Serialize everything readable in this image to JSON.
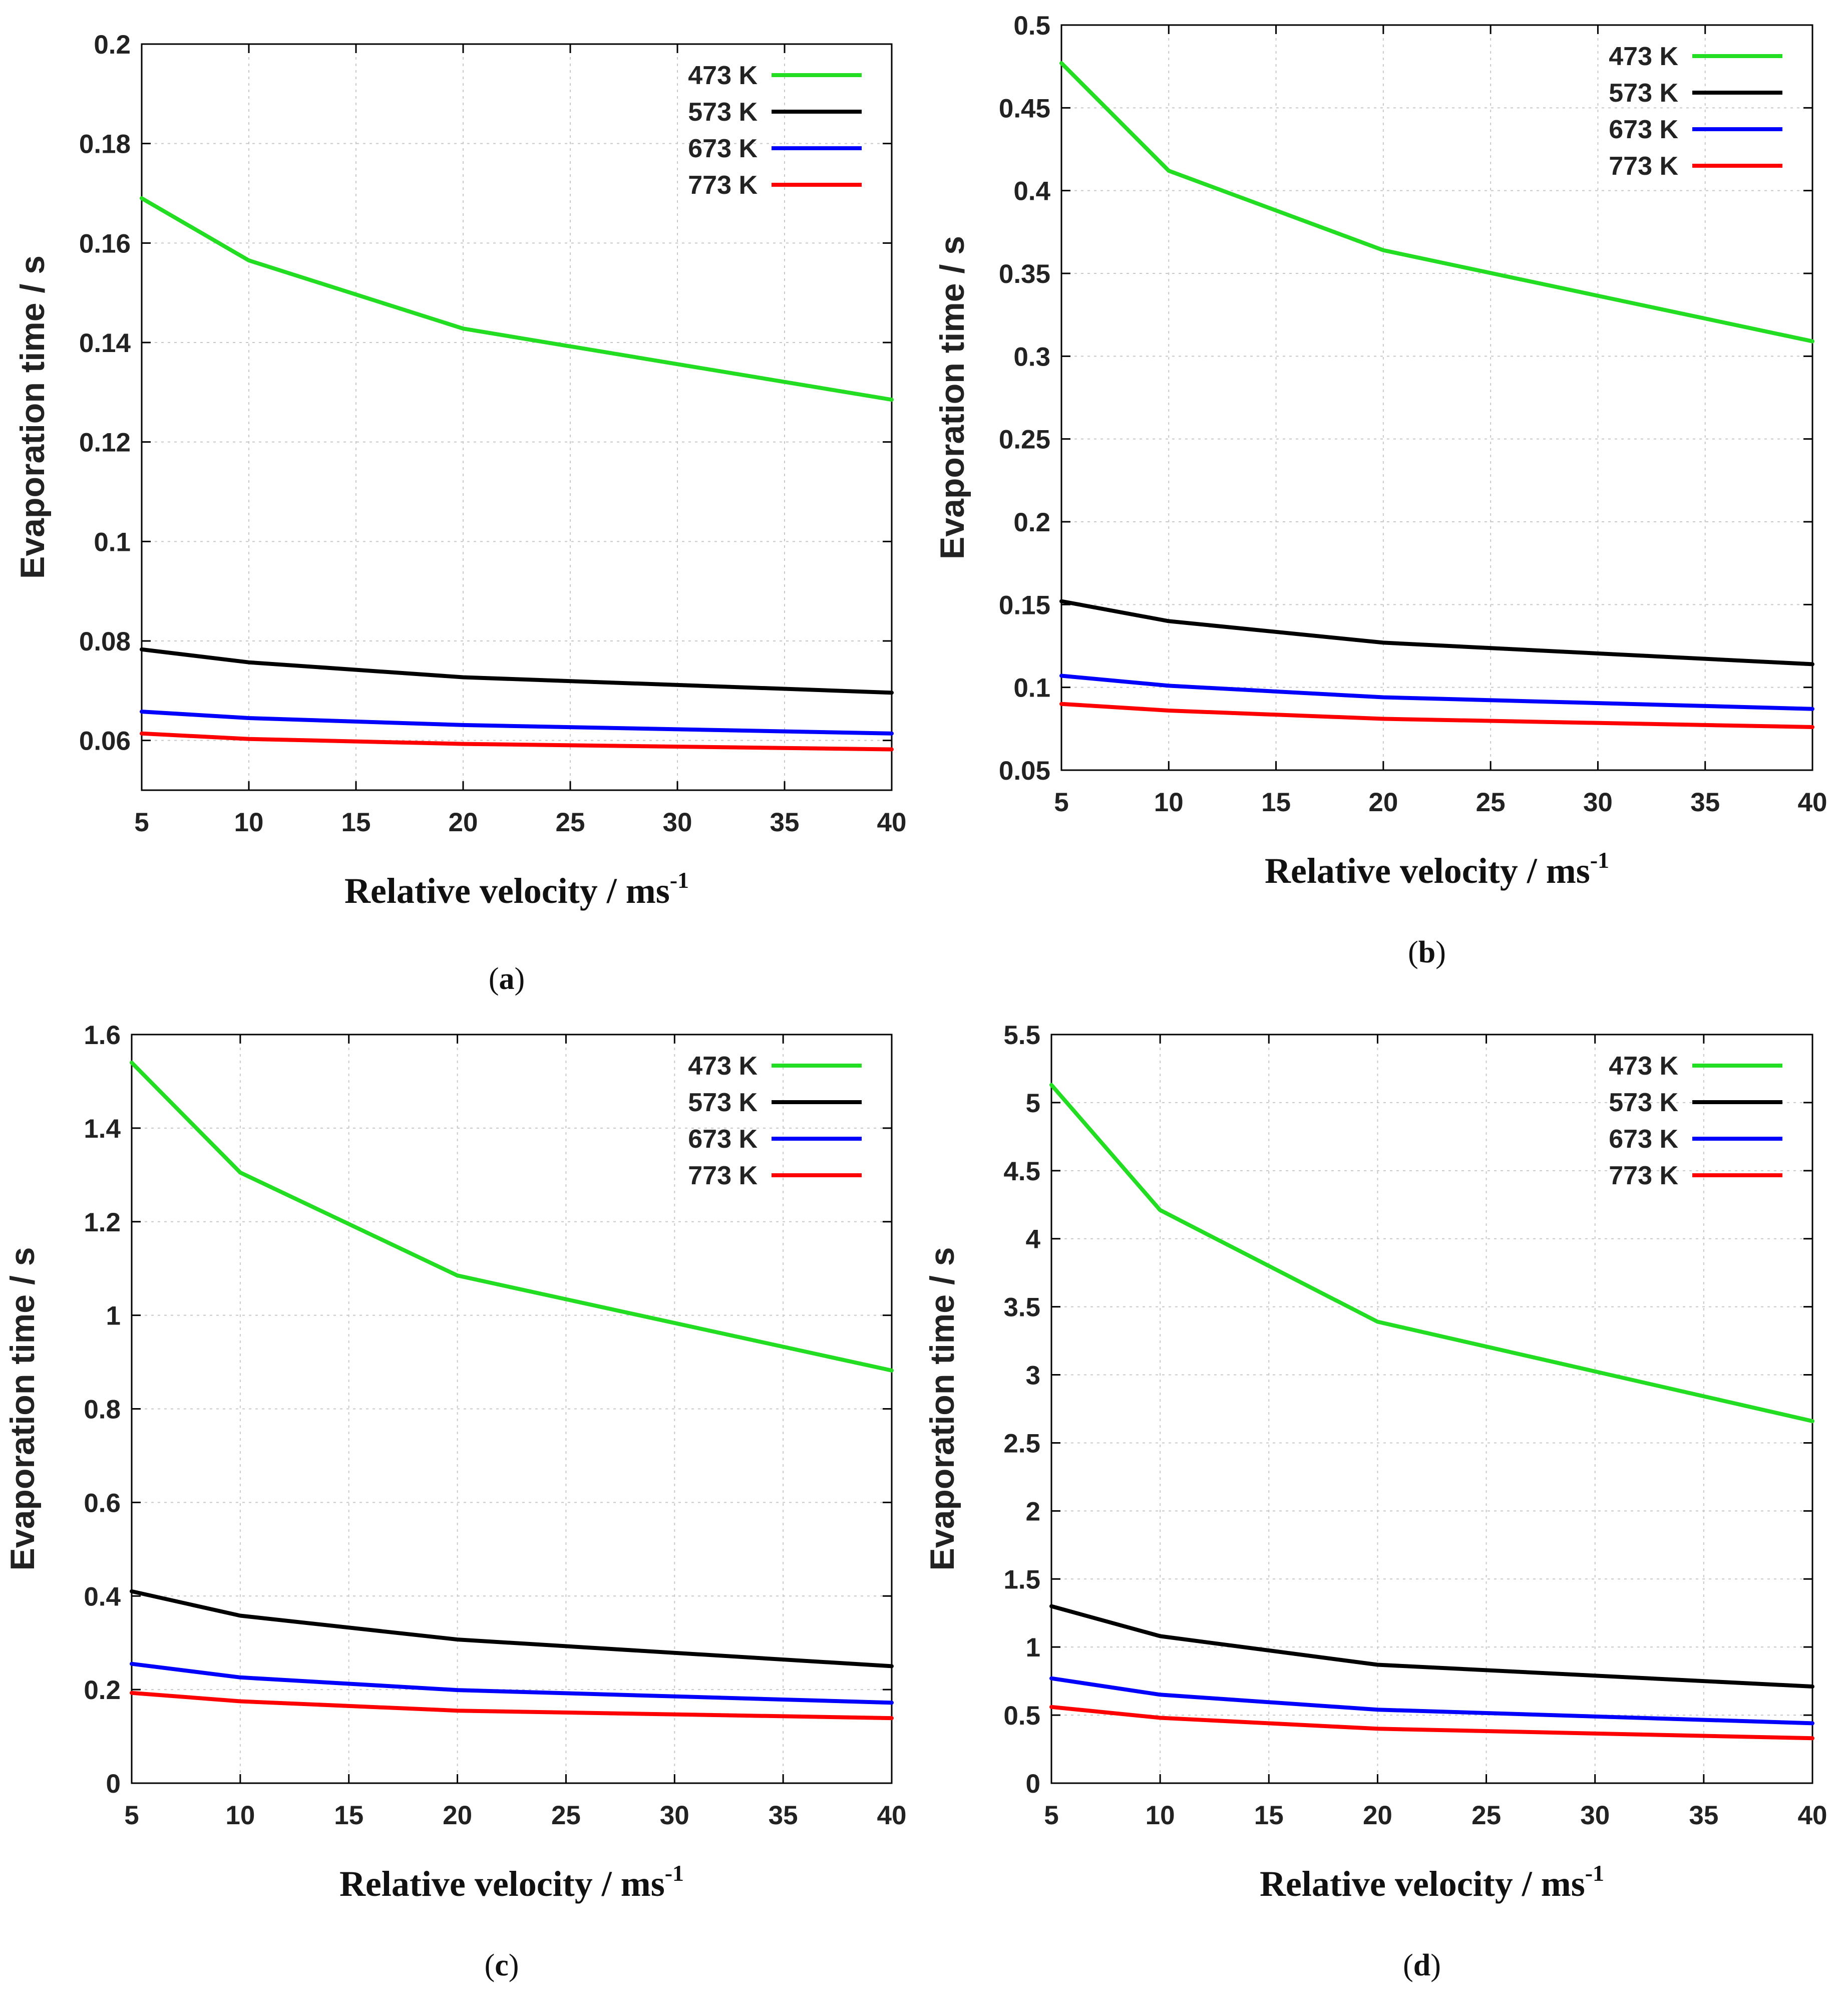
{
  "chart_data": [
    {
      "id": "a",
      "type": "line",
      "caption": "a",
      "xlabel": "Relative velocity / ms",
      "xlabel_sup": "-1",
      "ylabel": "Evaporation time / s",
      "xlim": [
        5,
        40
      ],
      "ylim": [
        0.05,
        0.2
      ],
      "xticks": [
        5,
        10,
        15,
        20,
        25,
        30,
        35,
        40
      ],
      "yticks": [
        0.06,
        0.08,
        0.1,
        0.12,
        0.14,
        0.16,
        0.18,
        0.2
      ],
      "x": [
        5,
        10,
        20,
        40
      ],
      "series": [
        {
          "name": "473 K",
          "color": "#22dd22",
          "values": [
            0.169,
            0.1565,
            0.1428,
            0.1285
          ]
        },
        {
          "name": "573 K",
          "color": "#000000",
          "values": [
            0.0783,
            0.0757,
            0.0727,
            0.0696
          ]
        },
        {
          "name": "673 K",
          "color": "#0000ff",
          "values": [
            0.0658,
            0.0645,
            0.0631,
            0.0614
          ]
        },
        {
          "name": "773 K",
          "color": "#ff0000",
          "values": [
            0.0614,
            0.0603,
            0.0593,
            0.0582
          ]
        }
      ]
    },
    {
      "id": "b",
      "type": "line",
      "caption": "b",
      "xlabel": "Relative velocity / ms",
      "xlabel_sup": "-1",
      "ylabel": "Evaporation time / s",
      "xlim": [
        5,
        40
      ],
      "ylim": [
        0.05,
        0.5
      ],
      "xticks": [
        5,
        10,
        15,
        20,
        25,
        30,
        35,
        40
      ],
      "yticks": [
        0.05,
        0.1,
        0.15,
        0.2,
        0.25,
        0.3,
        0.35,
        0.4,
        0.45,
        0.5
      ],
      "x": [
        5,
        10,
        20,
        40
      ],
      "series": [
        {
          "name": "473 K",
          "color": "#22dd22",
          "values": [
            0.477,
            0.412,
            0.364,
            0.309
          ]
        },
        {
          "name": "573 K",
          "color": "#000000",
          "values": [
            0.152,
            0.14,
            0.127,
            0.114
          ]
        },
        {
          "name": "673 K",
          "color": "#0000ff",
          "values": [
            0.107,
            0.101,
            0.094,
            0.087
          ]
        },
        {
          "name": "773 K",
          "color": "#ff0000",
          "values": [
            0.09,
            0.086,
            0.081,
            0.076
          ]
        }
      ]
    },
    {
      "id": "c",
      "type": "line",
      "caption": "c",
      "xlabel": "Relative velocity / ms",
      "xlabel_sup": "-1",
      "ylabel": "Evaporation time / s",
      "xlim": [
        5,
        40
      ],
      "ylim": [
        0,
        1.6
      ],
      "xticks": [
        5,
        10,
        15,
        20,
        25,
        30,
        35,
        40
      ],
      "yticks": [
        0,
        0.2,
        0.4,
        0.6,
        0.8,
        1,
        1.2,
        1.4,
        1.6
      ],
      "x": [
        5,
        10,
        20,
        40
      ],
      "series": [
        {
          "name": "473 K",
          "color": "#22dd22",
          "values": [
            1.54,
            1.305,
            1.085,
            0.882
          ]
        },
        {
          "name": "573 K",
          "color": "#000000",
          "values": [
            0.41,
            0.358,
            0.307,
            0.25
          ]
        },
        {
          "name": "673 K",
          "color": "#0000ff",
          "values": [
            0.255,
            0.226,
            0.199,
            0.172
          ]
        },
        {
          "name": "773 K",
          "color": "#ff0000",
          "values": [
            0.193,
            0.175,
            0.155,
            0.139
          ]
        }
      ]
    },
    {
      "id": "d",
      "type": "line",
      "caption": "d",
      "xlabel": "Relative velocity / ms",
      "xlabel_sup": "-1",
      "ylabel": "Evaporation time / s",
      "xlim": [
        5,
        40
      ],
      "ylim": [
        0,
        5.5
      ],
      "xticks": [
        5,
        10,
        15,
        20,
        25,
        30,
        35,
        40
      ],
      "yticks": [
        0,
        0.5,
        1,
        1.5,
        2,
        2.5,
        3,
        3.5,
        4,
        4.5,
        5,
        5.5
      ],
      "x": [
        5,
        10,
        20,
        40
      ],
      "series": [
        {
          "name": "473 K",
          "color": "#22dd22",
          "values": [
            5.13,
            4.21,
            3.39,
            2.66
          ]
        },
        {
          "name": "573 K",
          "color": "#000000",
          "values": [
            1.3,
            1.08,
            0.87,
            0.71
          ]
        },
        {
          "name": "673 K",
          "color": "#0000ff",
          "values": [
            0.77,
            0.65,
            0.54,
            0.44
          ]
        },
        {
          "name": "773 K",
          "color": "#ff0000",
          "values": [
            0.56,
            0.48,
            0.4,
            0.33
          ]
        }
      ]
    }
  ]
}
